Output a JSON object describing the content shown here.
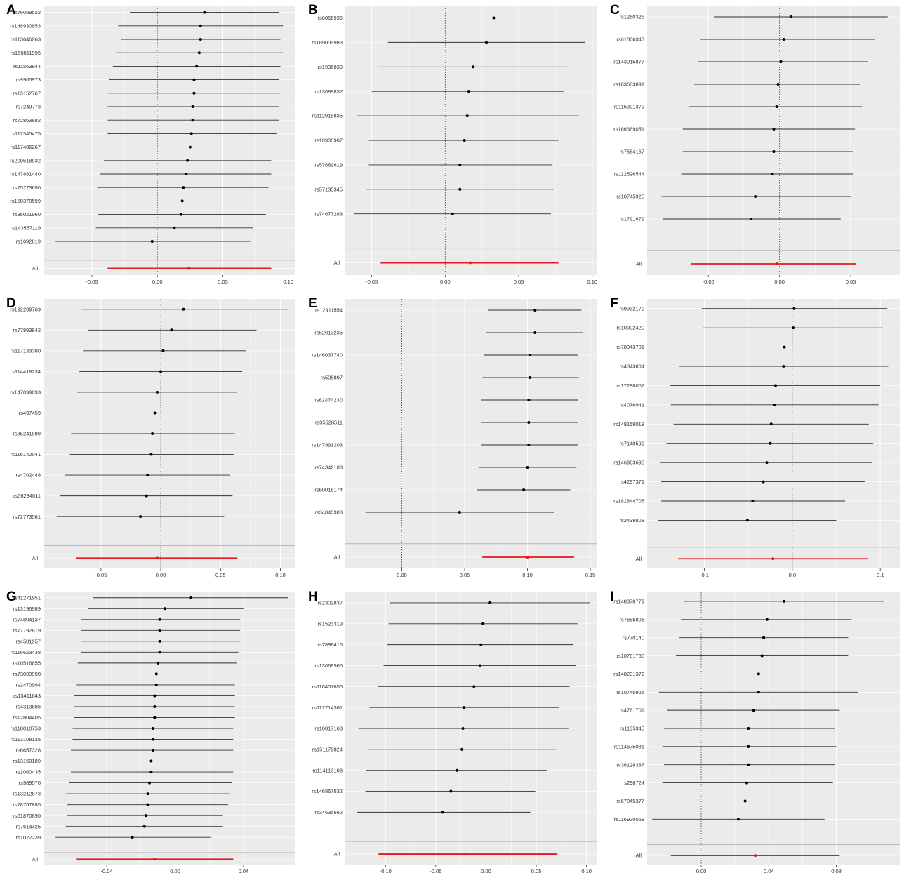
{
  "chart_data": [
    {
      "panel": "A",
      "type": "forest",
      "xlim": [
        -0.087,
        0.105
      ],
      "ticks": [
        -0.05,
        0.0,
        0.05,
        0.1
      ],
      "tick_labels": [
        "-0.05",
        "0.00",
        "0.05",
        "0.10"
      ],
      "rows": [
        {
          "snp": "rs76089522",
          "est": 0.036,
          "lo": -0.021,
          "hi": 0.093
        },
        {
          "snp": "rs148930853",
          "est": 0.033,
          "lo": -0.03,
          "hi": 0.096
        },
        {
          "snp": "rs113646963",
          "est": 0.033,
          "lo": -0.028,
          "hi": 0.094
        },
        {
          "snp": "rs150811995",
          "est": 0.032,
          "lo": -0.032,
          "hi": 0.096
        },
        {
          "snp": "rs11563944",
          "est": 0.03,
          "lo": -0.034,
          "hi": 0.094
        },
        {
          "snp": "rs9905973",
          "est": 0.028,
          "lo": -0.037,
          "hi": 0.093
        },
        {
          "snp": "rs13152767",
          "est": 0.028,
          "lo": -0.038,
          "hi": 0.094
        },
        {
          "snp": "rs7249773",
          "est": 0.027,
          "lo": -0.038,
          "hi": 0.093
        },
        {
          "snp": "rs72863882",
          "est": 0.027,
          "lo": -0.038,
          "hi": 0.093
        },
        {
          "snp": "rs117345475",
          "est": 0.026,
          "lo": -0.038,
          "hi": 0.091
        },
        {
          "snp": "rs117486267",
          "est": 0.025,
          "lo": -0.04,
          "hi": 0.091
        },
        {
          "snp": "rs200518932",
          "est": 0.023,
          "lo": -0.041,
          "hi": 0.087
        },
        {
          "snp": "rs147881440",
          "est": 0.022,
          "lo": -0.044,
          "hi": 0.087
        },
        {
          "snp": "rs75773690",
          "est": 0.02,
          "lo": -0.046,
          "hi": 0.085
        },
        {
          "snp": "rs150370599",
          "est": 0.019,
          "lo": -0.045,
          "hi": 0.083
        },
        {
          "snp": "rs36021960",
          "est": 0.018,
          "lo": -0.045,
          "hi": 0.083
        },
        {
          "snp": "rs143557119",
          "est": 0.013,
          "lo": -0.047,
          "hi": 0.073
        },
        {
          "snp": "rs1692819",
          "est": -0.004,
          "lo": -0.078,
          "hi": 0.071
        }
      ],
      "all": {
        "label": "All",
        "est": 0.024,
        "lo": -0.038,
        "hi": 0.087
      }
    },
    {
      "panel": "B",
      "type": "forest",
      "xlim": [
        -0.068,
        0.103
      ],
      "ticks": [
        -0.05,
        0.0,
        0.05,
        0.1
      ],
      "tick_labels": [
        "-0.05",
        "0.00",
        "0.05",
        "0.10"
      ],
      "rows": [
        {
          "snp": "rs8066936",
          "est": 0.033,
          "lo": -0.029,
          "hi": 0.095
        },
        {
          "snp": "rs189009983",
          "est": 0.028,
          "lo": -0.039,
          "hi": 0.095
        },
        {
          "snp": "rs1936839",
          "est": 0.019,
          "lo": -0.046,
          "hi": 0.084
        },
        {
          "snp": "rs13089837",
          "est": 0.016,
          "lo": -0.05,
          "hi": 0.081
        },
        {
          "snp": "rs112918835",
          "est": 0.015,
          "lo": -0.06,
          "hi": 0.091
        },
        {
          "snp": "rs10900907",
          "est": 0.013,
          "lo": -0.052,
          "hi": 0.077
        },
        {
          "snp": "rs57689619",
          "est": 0.01,
          "lo": -0.052,
          "hi": 0.073
        },
        {
          "snp": "rs57135345",
          "est": 0.01,
          "lo": -0.054,
          "hi": 0.074
        },
        {
          "snp": "rs74677283",
          "est": 0.005,
          "lo": -0.062,
          "hi": 0.072
        }
      ],
      "all": {
        "label": "All",
        "est": 0.017,
        "lo": -0.044,
        "hi": 0.077
      }
    },
    {
      "panel": "C",
      "type": "forest",
      "xlim": [
        -0.093,
        0.085
      ],
      "ticks": [
        -0.05,
        0.0,
        0.05
      ],
      "tick_labels": [
        "-0.05",
        "0.00",
        "0.05"
      ],
      "rows": [
        {
          "snp": "rs1260326",
          "est": 0.008,
          "lo": -0.046,
          "hi": 0.076
        },
        {
          "snp": "rs61866943",
          "est": 0.003,
          "lo": -0.056,
          "hi": 0.067
        },
        {
          "snp": "rs143015877",
          "est": 0.001,
          "lo": -0.057,
          "hi": 0.062
        },
        {
          "snp": "rs183683891",
          "est": -0.001,
          "lo": -0.06,
          "hi": 0.057
        },
        {
          "snp": "rs115901379",
          "est": -0.002,
          "lo": -0.064,
          "hi": 0.058
        },
        {
          "snp": "rs186369051",
          "est": -0.004,
          "lo": -0.068,
          "hi": 0.053
        },
        {
          "snp": "rs7564167",
          "est": -0.004,
          "lo": -0.068,
          "hi": 0.052
        },
        {
          "snp": "rs112526544",
          "est": -0.005,
          "lo": -0.069,
          "hi": 0.052
        },
        {
          "snp": "rs10745925",
          "est": -0.017,
          "lo": -0.083,
          "hi": 0.05
        },
        {
          "snp": "rs1791679",
          "est": -0.02,
          "lo": -0.082,
          "hi": 0.043
        }
      ],
      "all": {
        "label": "All",
        "est": -0.002,
        "lo": -0.062,
        "hi": 0.054
      }
    },
    {
      "panel": "D",
      "type": "forest",
      "xlim": [
        -0.098,
        0.112
      ],
      "ticks": [
        -0.05,
        0.0,
        0.05,
        0.1
      ],
      "tick_labels": [
        "-0.05",
        "0.00",
        "0.05",
        "0.10"
      ],
      "rows": [
        {
          "snp": "rs192289769",
          "est": 0.019,
          "lo": -0.066,
          "hi": 0.106
        },
        {
          "snp": "rs77893942",
          "est": 0.009,
          "lo": -0.061,
          "hi": 0.08
        },
        {
          "snp": "rs117133380",
          "est": 0.002,
          "lo": -0.065,
          "hi": 0.071
        },
        {
          "snp": "rs114418234",
          "est": 0.0,
          "lo": -0.068,
          "hi": 0.068
        },
        {
          "snp": "rs147099093",
          "est": -0.003,
          "lo": -0.07,
          "hi": 0.064
        },
        {
          "snp": "rs497459",
          "est": -0.005,
          "lo": -0.073,
          "hi": 0.063
        },
        {
          "snp": "rs35241999",
          "est": -0.007,
          "lo": -0.075,
          "hi": 0.062
        },
        {
          "snp": "rs116142041",
          "est": -0.008,
          "lo": -0.076,
          "hi": 0.061
        },
        {
          "snp": "rs4702448",
          "est": -0.011,
          "lo": -0.08,
          "hi": 0.058
        },
        {
          "snp": "rs56284011",
          "est": -0.012,
          "lo": -0.084,
          "hi": 0.06
        },
        {
          "snp": "rs72773561",
          "est": -0.017,
          "lo": -0.087,
          "hi": 0.053
        }
      ],
      "all": {
        "label": "All",
        "est": -0.003,
        "lo": -0.071,
        "hi": 0.064
      }
    },
    {
      "panel": "E",
      "type": "forest",
      "xlim": [
        -0.045,
        0.155
      ],
      "ticks": [
        0.0,
        0.05,
        0.1,
        0.15
      ],
      "tick_labels": [
        "0.00",
        "0.05",
        "0.10",
        "0.15"
      ],
      "rows": [
        {
          "snp": "rs12911554",
          "est": 0.106,
          "lo": 0.069,
          "hi": 0.143
        },
        {
          "snp": "rs62013235",
          "est": 0.106,
          "lo": 0.067,
          "hi": 0.144
        },
        {
          "snp": "rs146037740",
          "est": 0.102,
          "lo": 0.065,
          "hi": 0.14
        },
        {
          "snp": "rs508807",
          "est": 0.102,
          "lo": 0.064,
          "hi": 0.141
        },
        {
          "snp": "rs62474230",
          "est": 0.101,
          "lo": 0.063,
          "hi": 0.14
        },
        {
          "snp": "rs35628511",
          "est": 0.101,
          "lo": 0.063,
          "hi": 0.14
        },
        {
          "snp": "rs147991203",
          "est": 0.101,
          "lo": 0.063,
          "hi": 0.14
        },
        {
          "snp": "rs74342103",
          "est": 0.1,
          "lo": 0.061,
          "hi": 0.139
        },
        {
          "snp": "rs60018174",
          "est": 0.097,
          "lo": 0.06,
          "hi": 0.134
        },
        {
          "snp": "rs34843303",
          "est": 0.046,
          "lo": -0.029,
          "hi": 0.121
        }
      ],
      "all": {
        "label": "All",
        "est": 0.1,
        "lo": 0.064,
        "hi": 0.137
      }
    },
    {
      "panel": "F",
      "type": "forest",
      "xlim": [
        -0.165,
        0.123
      ],
      "ticks": [
        -0.1,
        0.0,
        0.1
      ],
      "tick_labels": [
        "-0.1",
        "0.0",
        "0.1"
      ],
      "rows": [
        {
          "snp": "rs9932172",
          "est": 0.002,
          "lo": -0.103,
          "hi": 0.108
        },
        {
          "snp": "rs10902420",
          "est": 0.001,
          "lo": -0.102,
          "hi": 0.103
        },
        {
          "snp": "rs78943701",
          "est": -0.009,
          "lo": -0.122,
          "hi": 0.103
        },
        {
          "snp": "rs4843804",
          "est": -0.01,
          "lo": -0.129,
          "hi": 0.109
        },
        {
          "snp": "rs17288007",
          "est": -0.019,
          "lo": -0.139,
          "hi": 0.1
        },
        {
          "snp": "rs4076941",
          "est": -0.02,
          "lo": -0.138,
          "hi": 0.098
        },
        {
          "snp": "rs149159018",
          "est": -0.024,
          "lo": -0.135,
          "hi": 0.087
        },
        {
          "snp": "rs7140599",
          "est": -0.025,
          "lo": -0.143,
          "hi": 0.092
        },
        {
          "snp": "rs146963690",
          "est": -0.029,
          "lo": -0.15,
          "hi": 0.091
        },
        {
          "snp": "rs4297371",
          "est": -0.033,
          "lo": -0.149,
          "hi": 0.083
        },
        {
          "snp": "rs181844705",
          "est": -0.045,
          "lo": -0.149,
          "hi": 0.06
        },
        {
          "snp": "rs2439803",
          "est": -0.051,
          "lo": -0.153,
          "hi": 0.05
        }
      ],
      "all": {
        "label": "All",
        "est": -0.022,
        "lo": -0.13,
        "hi": 0.086
      }
    },
    {
      "panel": "G",
      "type": "forest",
      "xlim": [
        -0.077,
        0.07
      ],
      "ticks": [
        -0.04,
        0.0,
        0.04
      ],
      "tick_labels": [
        "-0.04",
        "0.00",
        "0.04"
      ],
      "rows": [
        {
          "snp": "rs41271951",
          "est": 0.009,
          "lo": -0.048,
          "hi": 0.066
        },
        {
          "snp": "rs13196989",
          "est": -0.006,
          "lo": -0.051,
          "hi": 0.04
        },
        {
          "snp": "rs74804137",
          "est": -0.009,
          "lo": -0.055,
          "hi": 0.038
        },
        {
          "snp": "rs77792819",
          "est": -0.009,
          "lo": -0.055,
          "hi": 0.038
        },
        {
          "snp": "rs4581957",
          "est": -0.009,
          "lo": -0.055,
          "hi": 0.038
        },
        {
          "snp": "rs116623438",
          "est": -0.009,
          "lo": -0.055,
          "hi": 0.037
        },
        {
          "snp": "rs10516855",
          "est": -0.01,
          "lo": -0.057,
          "hi": 0.036
        },
        {
          "snp": "rs73099998",
          "est": -0.011,
          "lo": -0.057,
          "hi": 0.036
        },
        {
          "snp": "rs2470994",
          "est": -0.011,
          "lo": -0.058,
          "hi": 0.035
        },
        {
          "snp": "rs13411643",
          "est": -0.012,
          "lo": -0.059,
          "hi": 0.035
        },
        {
          "snp": "rs4313886",
          "est": -0.012,
          "lo": -0.059,
          "hi": 0.035
        },
        {
          "snp": "rs12804405",
          "est": -0.012,
          "lo": -0.059,
          "hi": 0.035
        },
        {
          "snp": "rs118010753",
          "est": -0.013,
          "lo": -0.06,
          "hi": 0.034
        },
        {
          "snp": "rs113108135",
          "est": -0.013,
          "lo": -0.06,
          "hi": 0.034
        },
        {
          "snp": "rs6657328",
          "est": -0.013,
          "lo": -0.061,
          "hi": 0.034
        },
        {
          "snp": "rs13150189",
          "est": -0.014,
          "lo": -0.062,
          "hi": 0.034
        },
        {
          "snp": "rs1060435",
          "est": -0.014,
          "lo": -0.061,
          "hi": 0.034
        },
        {
          "snp": "rs989576",
          "est": -0.015,
          "lo": -0.062,
          "hi": 0.033
        },
        {
          "snp": "rs13212873",
          "est": -0.016,
          "lo": -0.064,
          "hi": 0.032
        },
        {
          "snp": "rs78767885",
          "est": -0.016,
          "lo": -0.063,
          "hi": 0.031
        },
        {
          "snp": "rs61870690",
          "est": -0.017,
          "lo": -0.063,
          "hi": 0.028
        },
        {
          "snp": "rs7614425",
          "est": -0.018,
          "lo": -0.064,
          "hi": 0.028
        },
        {
          "snp": "rs1022239",
          "est": -0.025,
          "lo": -0.07,
          "hi": 0.021
        }
      ],
      "all": {
        "label": "All",
        "est": -0.012,
        "lo": -0.058,
        "hi": 0.034
      }
    },
    {
      "panel": "H",
      "type": "forest",
      "xlim": [
        -0.14,
        0.11
      ],
      "ticks": [
        -0.1,
        -0.05,
        0.0,
        0.05,
        0.1
      ],
      "tick_labels": [
        "-0.10",
        "-0.05",
        "0.00",
        "0.05",
        "0.10"
      ],
      "rows": [
        {
          "snp": "rs2302837",
          "est": 0.004,
          "lo": -0.096,
          "hi": 0.103
        },
        {
          "snp": "rs1523319",
          "est": -0.003,
          "lo": -0.097,
          "hi": 0.091
        },
        {
          "snp": "rs7898416",
          "est": -0.005,
          "lo": -0.098,
          "hi": 0.087
        },
        {
          "snp": "rs13068566",
          "est": -0.006,
          "lo": -0.102,
          "hi": 0.089
        },
        {
          "snp": "rs116407656",
          "est": -0.012,
          "lo": -0.108,
          "hi": 0.083
        },
        {
          "snp": "rs117714361",
          "est": -0.022,
          "lo": -0.116,
          "hi": 0.073
        },
        {
          "snp": "rs10817163",
          "est": -0.023,
          "lo": -0.127,
          "hi": 0.082
        },
        {
          "snp": "rs151179824",
          "est": -0.024,
          "lo": -0.117,
          "hi": 0.07
        },
        {
          "snp": "rs114113108",
          "est": -0.029,
          "lo": -0.119,
          "hi": 0.061
        },
        {
          "snp": "rs146867532",
          "est": -0.035,
          "lo": -0.12,
          "hi": 0.049
        },
        {
          "snp": "rs34635662",
          "est": -0.043,
          "lo": -0.128,
          "hi": 0.044
        }
      ],
      "all": {
        "label": "All",
        "est": -0.02,
        "lo": -0.107,
        "hi": 0.071
      }
    },
    {
      "panel": "I",
      "type": "forest",
      "xlim": [
        -0.032,
        0.118
      ],
      "ticks": [
        0.0,
        0.04,
        0.08
      ],
      "tick_labels": [
        "0.00",
        "0.04",
        "0.08"
      ],
      "rows": [
        {
          "snp": "rs148370779",
          "est": 0.049,
          "lo": -0.01,
          "hi": 0.108
        },
        {
          "snp": "rs7656806",
          "est": 0.039,
          "lo": -0.012,
          "hi": 0.089
        },
        {
          "snp": "rs770140",
          "est": 0.037,
          "lo": -0.013,
          "hi": 0.087
        },
        {
          "snp": "rs10761760",
          "est": 0.036,
          "lo": -0.015,
          "hi": 0.087
        },
        {
          "snp": "rs148201372",
          "est": 0.034,
          "lo": -0.017,
          "hi": 0.084
        },
        {
          "snp": "rs10745925",
          "est": 0.034,
          "lo": -0.025,
          "hi": 0.093
        },
        {
          "snp": "rs4761709",
          "est": 0.031,
          "lo": -0.02,
          "hi": 0.082
        },
        {
          "snp": "rs1135945",
          "est": 0.028,
          "lo": -0.022,
          "hi": 0.079
        },
        {
          "snp": "rs114675081",
          "est": 0.028,
          "lo": -0.023,
          "hi": 0.08
        },
        {
          "snp": "rs36128387",
          "est": 0.028,
          "lo": -0.022,
          "hi": 0.079
        },
        {
          "snp": "rs298724",
          "est": 0.027,
          "lo": -0.023,
          "hi": 0.078
        },
        {
          "snp": "rs67845377",
          "est": 0.026,
          "lo": -0.024,
          "hi": 0.077
        },
        {
          "snp": "rs116920068",
          "est": 0.022,
          "lo": -0.029,
          "hi": 0.073
        }
      ],
      "all": {
        "label": "All",
        "est": 0.032,
        "lo": -0.018,
        "hi": 0.082
      }
    }
  ],
  "colors": {
    "panel_bg": "#ebebeb",
    "grid": "#ffffff",
    "interval": "#303030",
    "point": "#000000",
    "summary": "#e41a1c",
    "zero_line": "#444444",
    "separator": "#b8b8b8"
  }
}
